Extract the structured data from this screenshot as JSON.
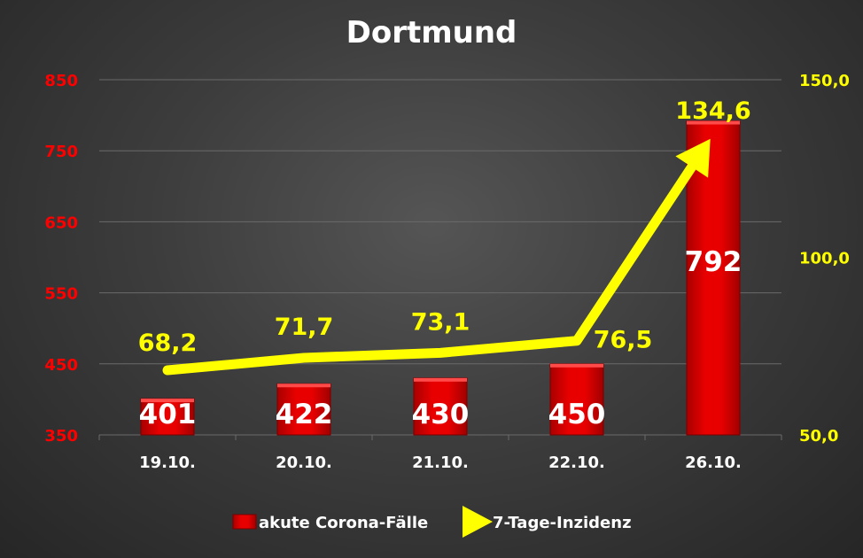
{
  "chart_data": {
    "type": "bar",
    "title": "Dortmund",
    "categories": [
      "19.10.",
      "20.10.",
      "21.10.",
      "22.10.",
      "26.10."
    ],
    "series": [
      {
        "name": "akute Corona-Fälle",
        "type": "bar",
        "axis": "left",
        "color": "#e00000",
        "values": [
          401,
          422,
          430,
          450,
          792
        ],
        "labels": [
          "401",
          "422",
          "430",
          "450",
          "792"
        ]
      },
      {
        "name": "7-Tage-Inzidenz",
        "type": "line",
        "axis": "right",
        "color": "#ffff00",
        "values": [
          68.2,
          71.7,
          73.1,
          76.5,
          134.6
        ],
        "labels": [
          "68,2",
          "71,7",
          "73,1",
          "76,5",
          "134,6"
        ]
      }
    ],
    "y_left": {
      "range": [
        350,
        850
      ],
      "ticks": [
        "350",
        "450",
        "550",
        "650",
        "750",
        "850"
      ],
      "color": "#ff0000"
    },
    "y_right": {
      "range": [
        50,
        150
      ],
      "ticks": [
        "50,0",
        "100,0",
        "150,0"
      ],
      "color": "#ffff00"
    },
    "grid": true,
    "legend_position": "bottom"
  }
}
